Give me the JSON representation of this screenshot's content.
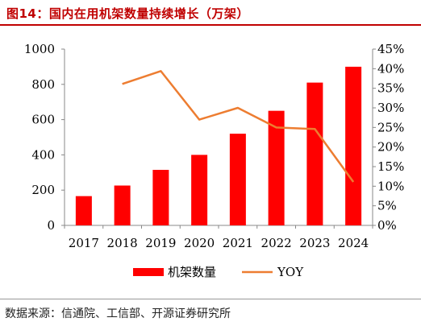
{
  "title": "图14：国内在用机架数量持续增长（万架）",
  "source": "数据来源：信通院、工信部、开源证券研究所",
  "colors": {
    "bar": "#ff0000",
    "line": "#ed7d31",
    "title": "#c00000"
  },
  "chart_data": {
    "type": "bar+line",
    "categories": [
      "2017",
      "2018",
      "2019",
      "2020",
      "2021",
      "2022",
      "2023",
      "2024"
    ],
    "series": [
      {
        "name": "机架数量",
        "type": "bar",
        "axis": "left",
        "values": [
          166,
          226,
          315,
          400,
          520,
          650,
          810,
          900
        ]
      },
      {
        "name": "YOY",
        "type": "line",
        "axis": "right",
        "values": [
          null,
          0.361,
          0.394,
          0.27,
          0.3,
          0.25,
          0.246,
          0.111
        ]
      }
    ],
    "left_axis": {
      "ylim": [
        0,
        1000
      ],
      "ticks": [
        "0",
        "200",
        "400",
        "600",
        "800",
        "1000"
      ]
    },
    "right_axis": {
      "ylim": [
        0,
        0.45
      ],
      "ticks": [
        "0%",
        "5%",
        "10%",
        "15%",
        "20%",
        "25%",
        "30%",
        "35%",
        "40%",
        "45%"
      ]
    },
    "legend": {
      "placement": "bottom"
    },
    "grid": false
  }
}
